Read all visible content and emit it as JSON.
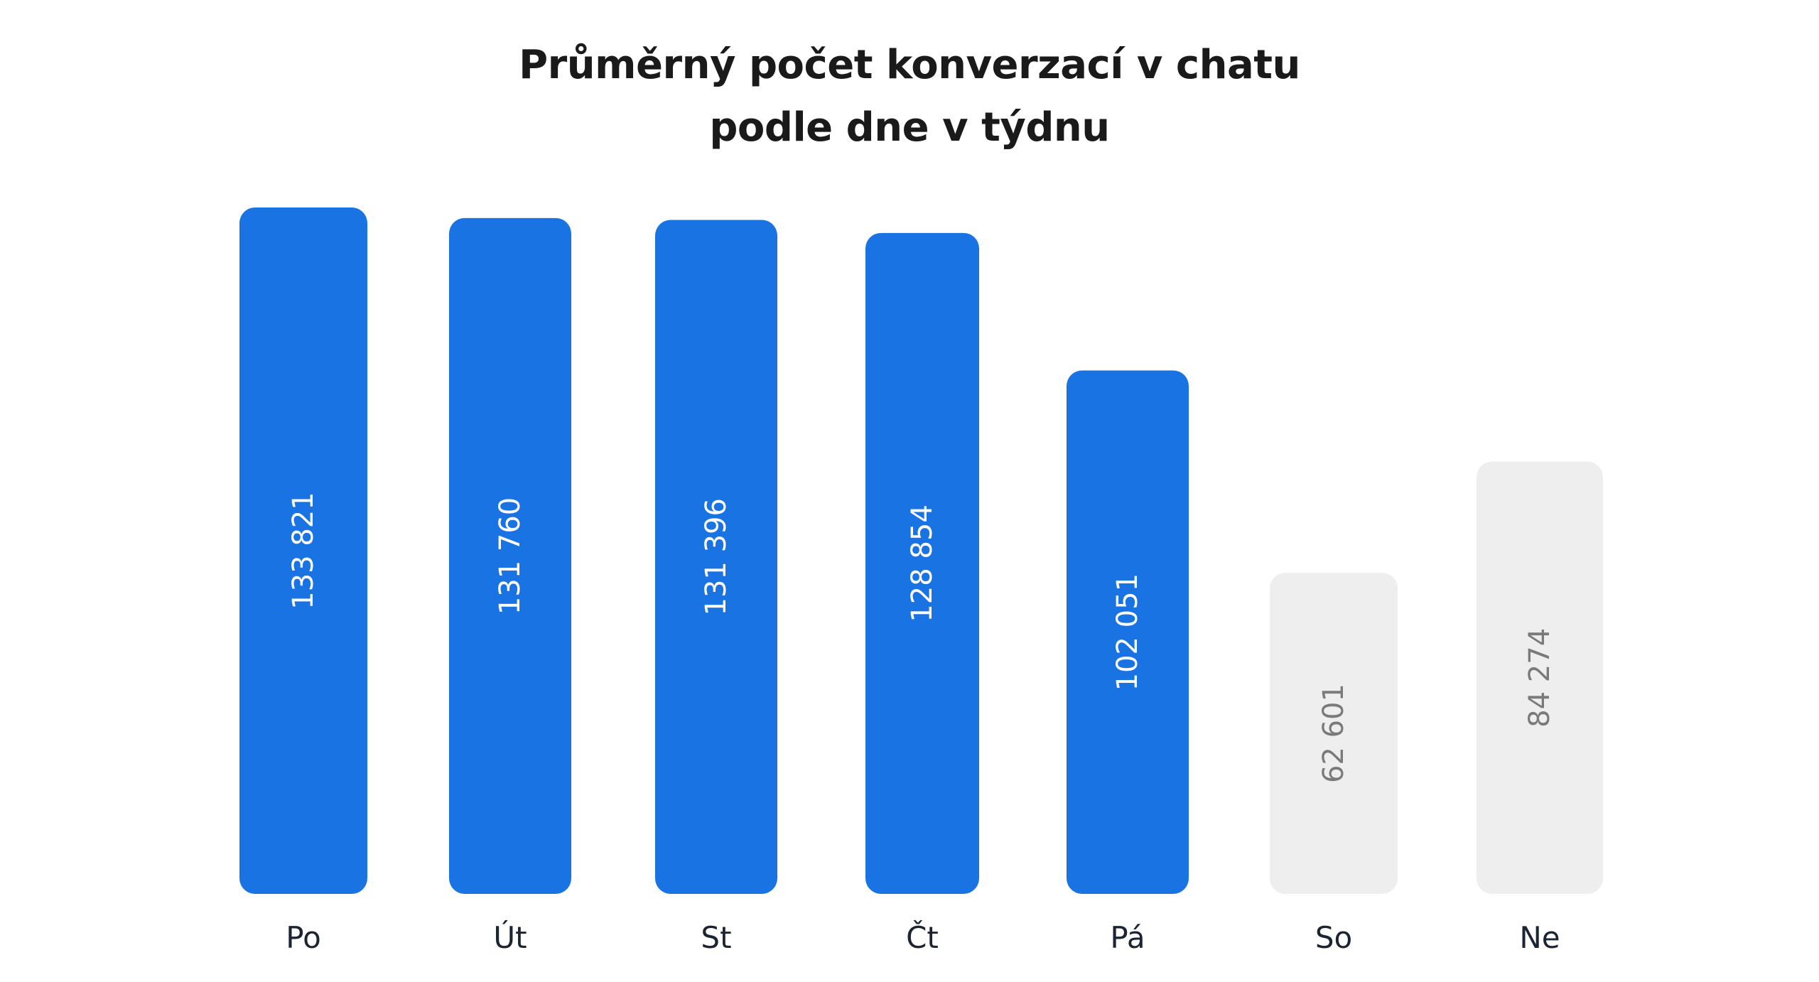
{
  "chart_data": {
    "type": "bar",
    "title_lines": [
      "Průměrný počet konverzací v chatu",
      "podle dne v týdnu"
    ],
    "categories": [
      "Po",
      "Út",
      "St",
      "Čt",
      "Pá",
      "So",
      "Ne"
    ],
    "values": [
      133821,
      131760,
      131396,
      128854,
      102051,
      62601,
      84274
    ],
    "value_labels": [
      "133 821",
      "131 760",
      "131 396",
      "128 854",
      "102 051",
      "62 601",
      "84 274"
    ],
    "weekend": [
      false,
      false,
      false,
      false,
      false,
      true,
      true
    ],
    "ylim": [
      0,
      133821
    ],
    "grid": false,
    "legend": "none",
    "colors": {
      "weekday_bar": "#1a73e3",
      "weekend_bar": "#eeeeee",
      "weekday_label": "#ffffff",
      "weekend_label": "#7a7a7a"
    }
  }
}
